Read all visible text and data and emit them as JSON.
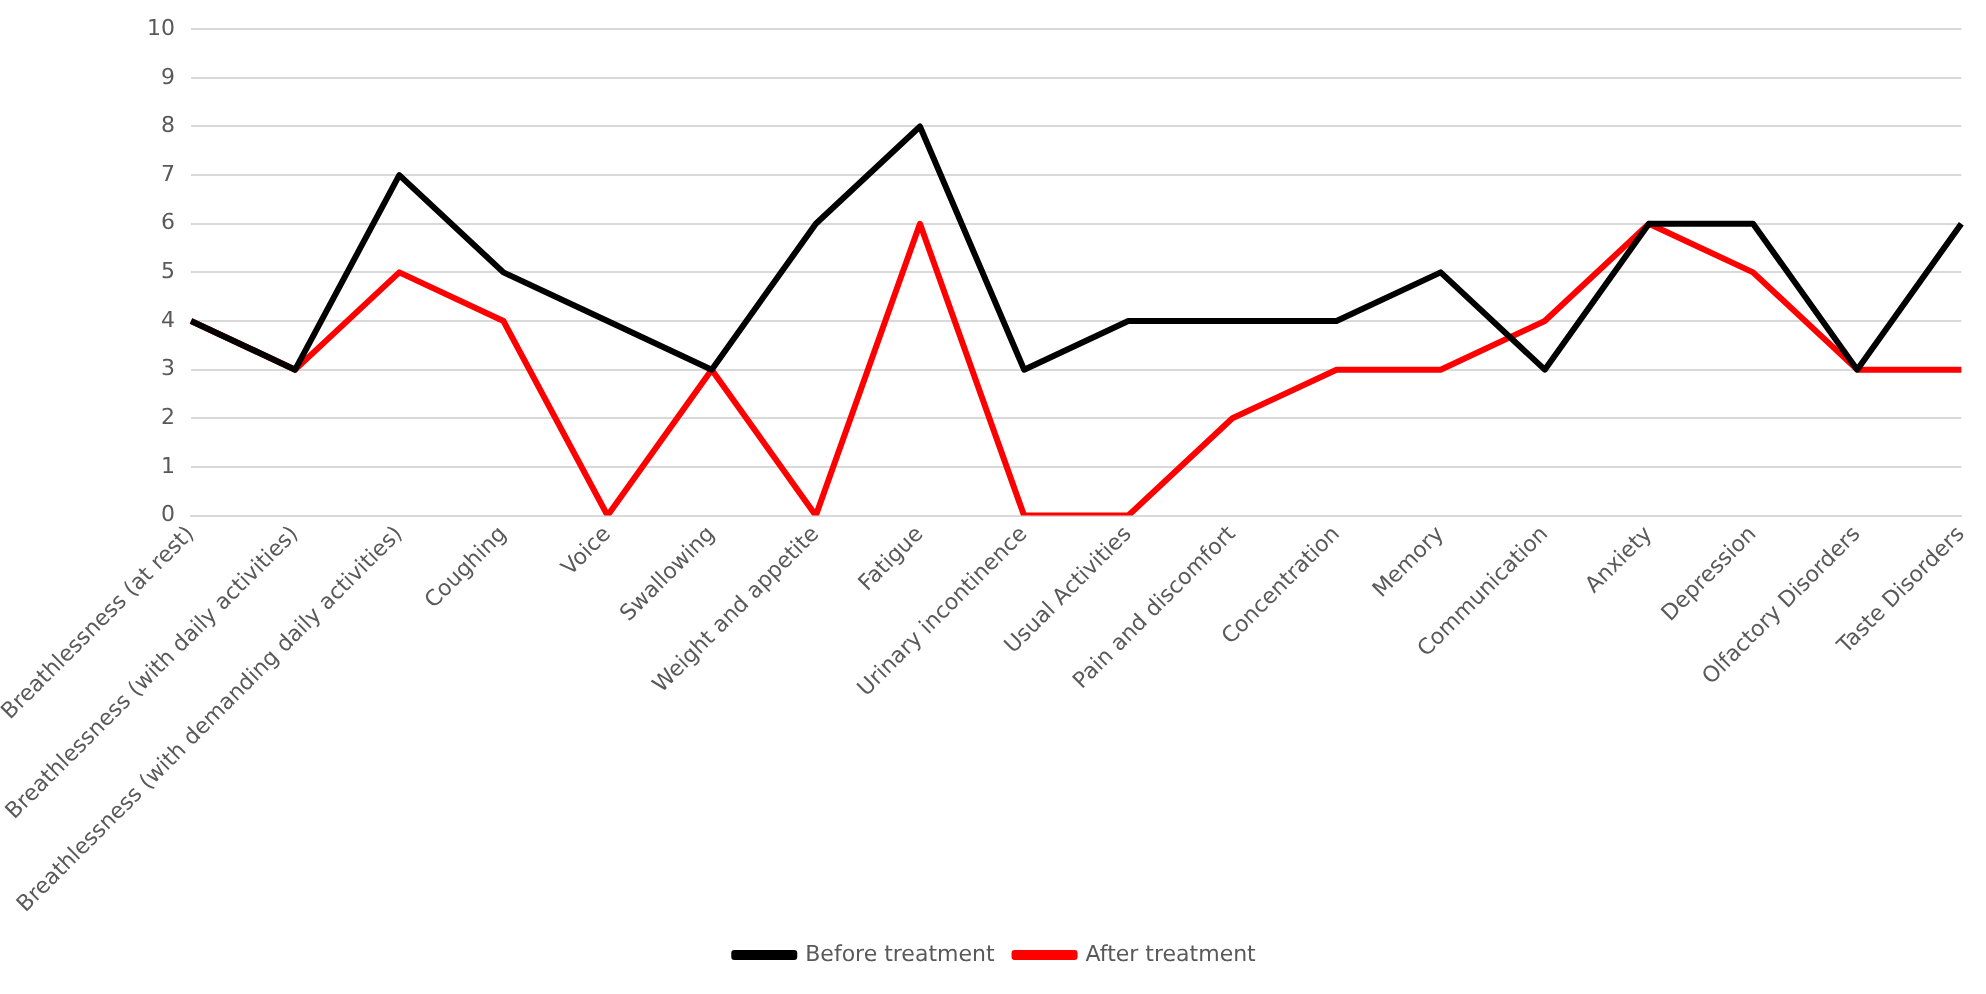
{
  "chart_data": {
    "type": "line",
    "categories": [
      "Breathlessness (at rest)",
      "Breathlessness (with daily activities)",
      "Breathlessness (with demanding daily activities)",
      "Coughing",
      "Voice",
      "Swallowing",
      "Weight and appetite",
      "Fatigue",
      "Urinary incontinence",
      "Usual Activities",
      "Pain and discomfort",
      "Concentration",
      "Memory",
      "Communication",
      "Anxiety",
      "Depression",
      "Olfactory Disorders",
      "Taste Disorders"
    ],
    "series": [
      {
        "name": "Before treatment",
        "color": "#000000",
        "values": [
          4,
          3,
          7,
          5,
          4,
          3,
          6,
          8,
          3,
          4,
          4,
          4,
          5,
          3,
          6,
          6,
          3,
          6
        ]
      },
      {
        "name": "After treatment",
        "color": "#ff0000",
        "values": [
          4,
          3,
          5,
          4,
          0,
          3,
          0,
          6,
          0,
          0,
          2,
          3,
          3,
          4,
          6,
          5,
          3,
          3
        ]
      }
    ],
    "ylim": [
      0,
      10
    ],
    "yticks": [
      0,
      1,
      2,
      3,
      4,
      5,
      6,
      7,
      8,
      9,
      10
    ],
    "grid": "y",
    "legend": "bottom",
    "marker": "none",
    "line_style": "solid"
  }
}
